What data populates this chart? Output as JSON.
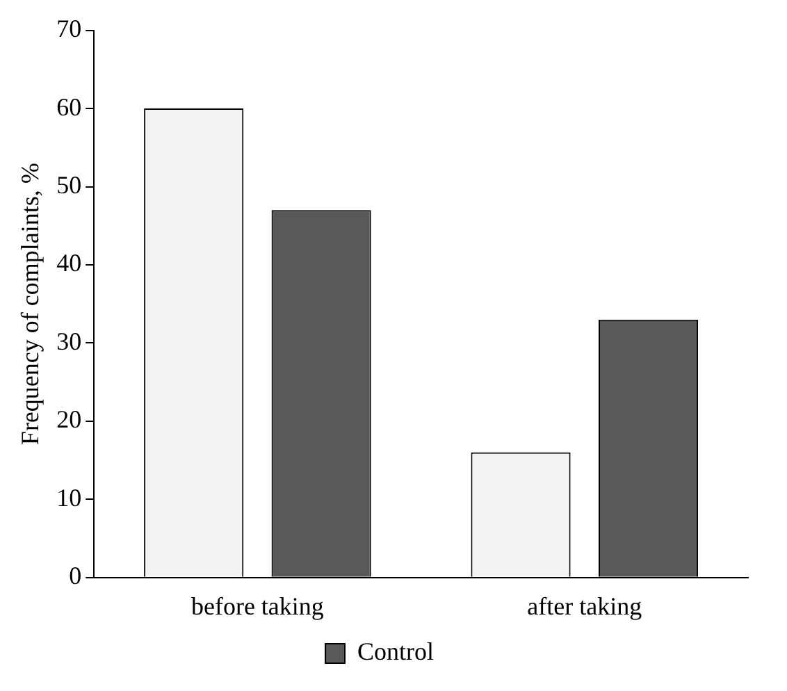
{
  "chart_data": {
    "type": "bar",
    "ylabel": "Frequency of complaints, %",
    "categories": [
      "before taking",
      "after taking"
    ],
    "series": [
      {
        "color": "#f2f2f2",
        "values": [
          60,
          16
        ]
      },
      {
        "name": "Control",
        "color": "#595959",
        "values": [
          47,
          33
        ]
      }
    ],
    "ylim": [
      0,
      70
    ],
    "yticks": [
      0,
      10,
      20,
      30,
      40,
      50,
      60,
      70
    ],
    "grid": false,
    "legend": "bottom"
  }
}
